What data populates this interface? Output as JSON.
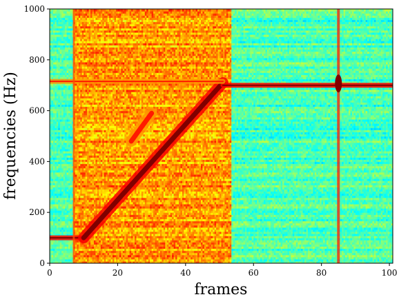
{
  "chart_data": {
    "type": "heatmap",
    "title": "",
    "xlabel": "frames",
    "ylabel": "frequencies (Hz)",
    "xlim": [
      0,
      101
    ],
    "ylim": [
      0,
      1000
    ],
    "x_ticks": [
      "0",
      "20",
      "40",
      "60",
      "80",
      "100"
    ],
    "y_ticks": [
      "0",
      "200",
      "400",
      "600",
      "800",
      "1000"
    ],
    "colormap": "jet",
    "noise_floor": {
      "noisy_region_frames": [
        7,
        53
      ],
      "quiet_region_level": 0.45,
      "noisy_region_level": 0.72
    },
    "features": [
      {
        "kind": "constant_tone",
        "frames": [
          0,
          11
        ],
        "freq_hz": 100,
        "level": 1.0
      },
      {
        "kind": "chirp",
        "frames": [
          10,
          51
        ],
        "freq_hz": [
          100,
          710
        ],
        "level": 1.0
      },
      {
        "kind": "constant_tone",
        "frames": [
          51,
          101
        ],
        "freq_hz": 700,
        "level": 1.0
      },
      {
        "kind": "constant_tone",
        "frames": [
          0,
          51
        ],
        "freq_hz": 715,
        "level": 0.85
      },
      {
        "kind": "chirp",
        "frames": [
          24,
          30
        ],
        "freq_hz": [
          480,
          590
        ],
        "level": 0.85
      },
      {
        "kind": "broadband_column",
        "frames": [
          84.6,
          85.4
        ],
        "level": 0.85
      },
      {
        "kind": "broadband_column",
        "frames": [
          6.8,
          7.4
        ],
        "level": 0.8
      },
      {
        "kind": "burst",
        "frame": 85,
        "freq_hz": 707,
        "level": 1.0
      }
    ]
  },
  "colors": {
    "axis": "#000000",
    "background": "#ffffff"
  }
}
